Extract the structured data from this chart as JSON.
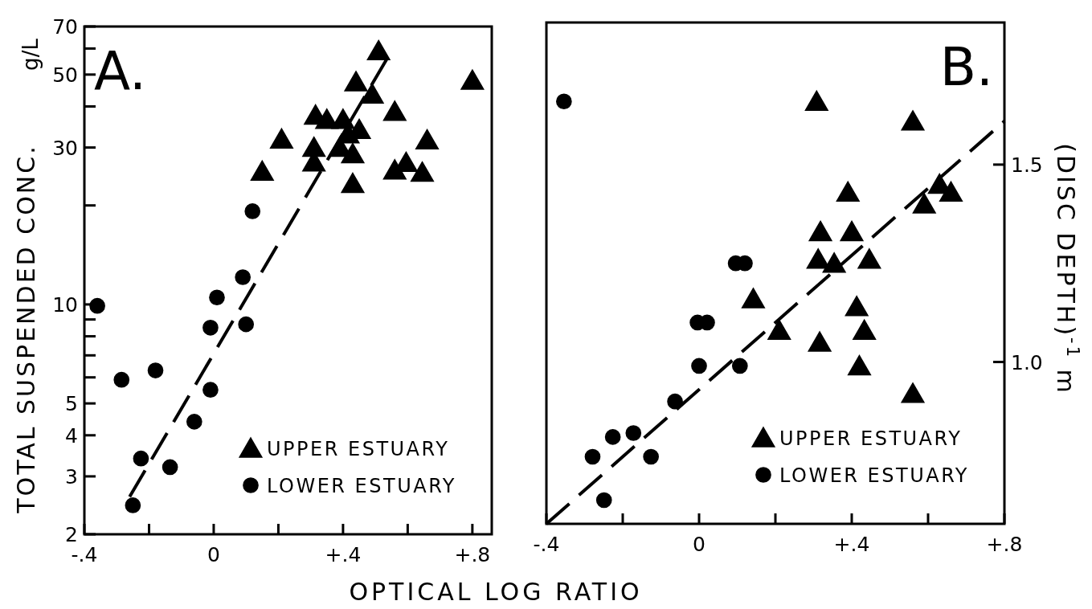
{
  "chart_data": [
    {
      "type": "scatter",
      "xlabel": "OPTICAL LOG RATIO",
      "ylabel": "TOTAL SUSPENDED CONC.",
      "annotations": [
        "A.",
        "g/L"
      ],
      "log": "y",
      "legend": "bottom right",
      "xlim": [
        -0.4,
        0.86
      ],
      "xticks": [
        {
          "value": -0.4,
          "label": "-.4"
        },
        {
          "value": -0.2,
          "label": null
        },
        0,
        {
          "value": 0.2,
          "label": null
        },
        {
          "value": 0.4,
          "label": "+.4"
        },
        {
          "value": 0.6,
          "label": null
        },
        {
          "value": 0.8,
          "label": "+.8"
        }
      ],
      "ylim": [
        2,
        70
      ],
      "yticks": [
        2,
        3,
        4,
        5,
        {
          "value": 6,
          "label": null
        },
        {
          "value": 7,
          "label": null
        },
        {
          "value": 8,
          "label": null
        },
        {
          "value": 9,
          "label": null
        },
        10,
        {
          "value": 20,
          "label": null
        },
        30,
        {
          "value": 40,
          "label": null
        },
        50,
        {
          "value": 60,
          "label": null
        },
        70
      ],
      "series": [
        {
          "name": "UPPER ESTUARY",
          "color": "#000000",
          "marker": "triangle",
          "x": [
            0.51,
            0.8,
            0.44,
            0.49,
            0.56,
            0.315,
            0.35,
            0.4,
            0.45,
            0.415,
            0.21,
            0.31,
            0.39,
            0.43,
            0.66,
            0.31,
            0.595,
            0.56,
            0.645,
            0.15,
            0.43
          ],
          "values": [
            59,
            48,
            47.5,
            43.6,
            38.6,
            37.6,
            36.5,
            36.5,
            34,
            33,
            31.8,
            30,
            30,
            28.7,
            31.6,
            27.1,
            27,
            25.6,
            25.2,
            25.4,
            23.3
          ]
        },
        {
          "name": "LOWER ESTUARY",
          "color": "#000000",
          "marker": "circle",
          "x": [
            0.12,
            0.09,
            -0.36,
            0.01,
            -0.01,
            0.1,
            -0.18,
            -0.285,
            -0.01,
            -0.06,
            -0.225,
            -0.135,
            -0.25
          ],
          "values": [
            19.2,
            12.1,
            9.9,
            10.5,
            8.5,
            8.7,
            6.3,
            5.9,
            5.5,
            4.4,
            3.4,
            3.2,
            2.45
          ]
        },
        {
          "type": "line",
          "color": "#000000",
          "line_style": "dashed",
          "x": [
            -0.26,
            0.55
          ],
          "values": [
            2.6,
            59
          ]
        }
      ]
    },
    {
      "type": "scatter",
      "y2label": "(DISC DEPTH)$^{-1}$ m",
      "annotations": [
        "B."
      ],
      "legend": "bottom right",
      "xlim": [
        -0.4,
        0.8
      ],
      "xticks": [
        {
          "value": -0.4,
          "label": "-.4"
        },
        {
          "value": -0.2,
          "label": null
        },
        0,
        {
          "value": 0.2,
          "label": null
        },
        {
          "value": 0.4,
          "label": "+.4"
        },
        {
          "value": 0.6,
          "label": null
        },
        {
          "value": 0.8,
          "label": "+.8"
        }
      ],
      "y2lim": [
        0.59,
        1.86
      ],
      "y2ticks": [
        {
          "value": 1,
          "label": "1.0"
        },
        1.5
      ],
      "series": [
        {
          "name": "UPPER ESTUARY",
          "color": "#000000",
          "marker": "triangle",
          "axis": "y2",
          "x": [
            0.308,
            0.56,
            0.39,
            0.63,
            0.66,
            0.59,
            0.318,
            0.4,
            0.312,
            0.354,
            0.446,
            0.142,
            0.413,
            0.21,
            0.433,
            0.316,
            0.42,
            0.56
          ],
          "values": [
            1.66,
            1.61,
            1.43,
            1.45,
            1.43,
            1.4,
            1.33,
            1.33,
            1.26,
            1.25,
            1.26,
            1.16,
            1.14,
            1.08,
            1.08,
            1.05,
            0.99,
            0.92
          ]
        },
        {
          "name": "LOWER ESTUARY",
          "color": "#000000",
          "marker": "circle",
          "axis": "y2",
          "x": [
            -0.354,
            0.096,
            0.12,
            -0.004,
            0.021,
            0,
            0.107,
            -0.063,
            -0.226,
            -0.172,
            -0.279,
            -0.126,
            -0.249
          ],
          "values": [
            1.66,
            1.25,
            1.25,
            1.1,
            1.1,
            0.99,
            0.99,
            0.9,
            0.81,
            0.82,
            0.76,
            0.76,
            0.65
          ]
        },
        {
          "type": "line",
          "color": "#000000",
          "line_style": "dashed",
          "axis": "y2",
          "x": [
            -0.4,
            0.8
          ],
          "values": [
            0.59,
            1.61
          ]
        }
      ]
    }
  ]
}
